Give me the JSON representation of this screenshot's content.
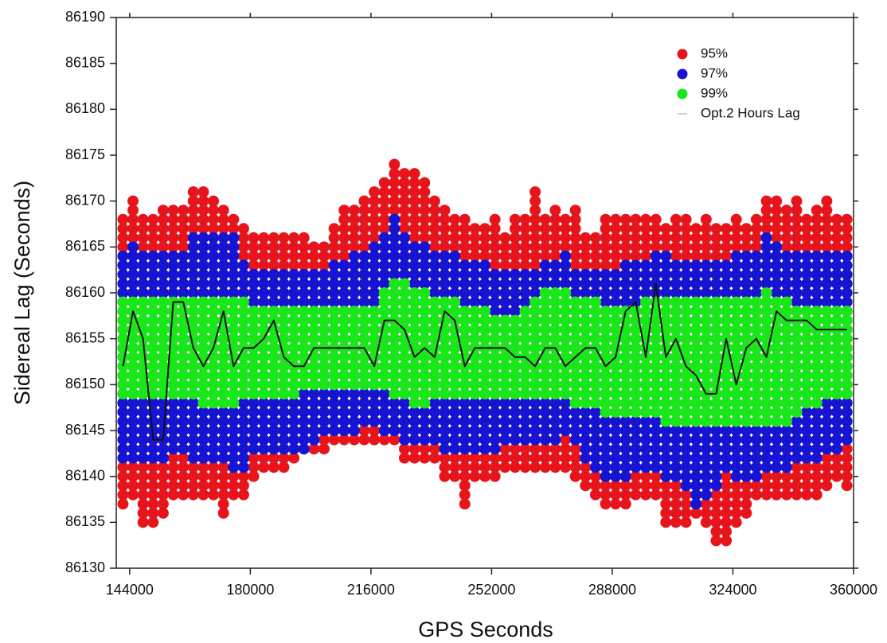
{
  "chart_data": {
    "type": "dot_range",
    "xlabel": "GPS Seconds",
    "ylabel": "Sidereal Lag (Seconds)",
    "xlim": [
      140000,
      360000
    ],
    "xticks": [
      144000,
      180000,
      216000,
      252000,
      288000,
      324000,
      360000
    ],
    "ylim": [
      86130,
      86190
    ],
    "yticks": [
      86130,
      86135,
      86140,
      86145,
      86150,
      86155,
      86160,
      86165,
      86170,
      86175,
      86180,
      86185,
      86190
    ],
    "legend": "upper right",
    "x": [
      142000,
      145000,
      148000,
      151000,
      154000,
      157000,
      160000,
      163000,
      166000,
      169000,
      172000,
      175000,
      178000,
      181000,
      184000,
      187000,
      190000,
      193000,
      196000,
      199000,
      202000,
      205000,
      208000,
      211000,
      214000,
      217000,
      220000,
      223000,
      226000,
      229000,
      232000,
      235000,
      238000,
      241000,
      244000,
      247000,
      250000,
      253000,
      256000,
      259000,
      262000,
      265000,
      268000,
      271000,
      274000,
      277000,
      280000,
      283000,
      286000,
      289000,
      292000,
      295000,
      298000,
      301000,
      304000,
      307000,
      310000,
      313000,
      316000,
      319000,
      322000,
      325000,
      328000,
      331000,
      334000,
      337000,
      340000,
      343000,
      346000,
      349000,
      352000,
      355000,
      358000
    ],
    "series": [
      {
        "name": "95%",
        "color": "#e8141c",
        "type": "dot_range",
        "low": [
          86137,
          86138,
          86135,
          86135,
          86136,
          86138,
          86138,
          86138,
          86138,
          86138,
          86136,
          86138,
          86138,
          86140,
          86141,
          86141,
          86141,
          86142,
          86143,
          86143,
          86143,
          86144,
          86144,
          86144,
          86144,
          86144,
          86144,
          86144,
          86142,
          86142,
          86142,
          86142,
          86140,
          86140,
          86137,
          86140,
          86140,
          86140,
          86141,
          86141,
          86141,
          86141,
          86141,
          86141,
          86141,
          86140,
          86139,
          86138,
          86137,
          86137,
          86137,
          86138,
          86138,
          86138,
          86135,
          86135,
          86135,
          86136,
          86135,
          86133,
          86133,
          86135,
          86136,
          86138,
          86138,
          86138,
          86138,
          86138,
          86138,
          86138,
          86139,
          86140,
          86139
        ],
        "high": [
          86168,
          86170,
          86168,
          86168,
          86169,
          86169,
          86169,
          86171,
          86171,
          86170,
          86169,
          86168,
          86167,
          86166,
          86166,
          86166,
          86166,
          86166,
          86166,
          86165,
          86165,
          86167,
          86169,
          86169,
          86170,
          86171,
          86172,
          86174,
          86173,
          86173,
          86172,
          86170,
          86169,
          86168,
          86168,
          86167,
          86167,
          86168,
          86166,
          86168,
          86168,
          86171,
          86168,
          86169,
          86168,
          86169,
          86166,
          86166,
          86168,
          86168,
          86168,
          86168,
          86168,
          86168,
          86167,
          86168,
          86168,
          86167,
          86168,
          86167,
          86167,
          86168,
          86167,
          86168,
          86170,
          86170,
          86169,
          86170,
          86168,
          86169,
          86170,
          86168,
          86168
        ]
      },
      {
        "name": "97%",
        "color": "#1414d2",
        "type": "dot_range",
        "low": [
          86142,
          86142,
          86142,
          86142,
          86142,
          86143,
          86143,
          86142,
          86142,
          86142,
          86142,
          86141,
          86141,
          86143,
          86143,
          86143,
          86143,
          86143,
          86143,
          86144,
          86145,
          86145,
          86145,
          86145,
          86146,
          86146,
          86145,
          86145,
          86144,
          86144,
          86144,
          86144,
          86143,
          86143,
          86143,
          86143,
          86143,
          86143,
          86144,
          86144,
          86144,
          86144,
          86144,
          86144,
          86145,
          86144,
          86142,
          86141,
          86140,
          86140,
          86140,
          86141,
          86141,
          86141,
          86140,
          86140,
          86139,
          86137,
          86138,
          86139,
          86141,
          86140,
          86140,
          86140,
          86141,
          86141,
          86141,
          86142,
          86142,
          86142,
          86143,
          86143,
          86144
        ],
        "high": [
          86164,
          86165,
          86164,
          86164,
          86164,
          86164,
          86164,
          86166,
          86166,
          86166,
          86166,
          86166,
          86163,
          86162,
          86162,
          86162,
          86162,
          86162,
          86162,
          86162,
          86162,
          86163,
          86163,
          86164,
          86164,
          86165,
          86166,
          86168,
          86166,
          86165,
          86165,
          86164,
          86164,
          86164,
          86163,
          86163,
          86163,
          86162,
          86162,
          86162,
          86162,
          86162,
          86163,
          86163,
          86164,
          86162,
          86162,
          86162,
          86162,
          86162,
          86163,
          86163,
          86163,
          86164,
          86164,
          86163,
          86163,
          86163,
          86163,
          86163,
          86163,
          86164,
          86164,
          86164,
          86166,
          86165,
          86164,
          86164,
          86164,
          86164,
          86164,
          86164,
          86164
        ]
      },
      {
        "name": "99%",
        "color": "#18e818",
        "type": "dot_range",
        "low": [
          86149,
          86149,
          86149,
          86149,
          86149,
          86149,
          86149,
          86149,
          86148,
          86148,
          86148,
          86148,
          86149,
          86149,
          86149,
          86149,
          86149,
          86149,
          86150,
          86150,
          86150,
          86150,
          86150,
          86150,
          86150,
          86150,
          86150,
          86149,
          86149,
          86148,
          86148,
          86149,
          86149,
          86149,
          86149,
          86149,
          86149,
          86149,
          86149,
          86149,
          86149,
          86149,
          86149,
          86149,
          86149,
          86148,
          86148,
          86148,
          86147,
          86147,
          86147,
          86147,
          86147,
          86147,
          86146,
          86146,
          86146,
          86146,
          86146,
          86146,
          86146,
          86146,
          86146,
          86146,
          86146,
          86146,
          86146,
          86147,
          86148,
          86148,
          86149,
          86149,
          86149
        ],
        "high": [
          86159,
          86159,
          86159,
          86159,
          86159,
          86159,
          86159,
          86159,
          86159,
          86159,
          86159,
          86159,
          86159,
          86158,
          86158,
          86158,
          86158,
          86158,
          86158,
          86158,
          86158,
          86158,
          86158,
          86158,
          86158,
          86158,
          86160,
          86161,
          86161,
          86160,
          86160,
          86159,
          86159,
          86159,
          86158,
          86158,
          86158,
          86157,
          86157,
          86157,
          86158,
          86159,
          86160,
          86160,
          86160,
          86159,
          86159,
          86159,
          86158,
          86158,
          86158,
          86158,
          86159,
          86159,
          86159,
          86159,
          86159,
          86159,
          86159,
          86159,
          86159,
          86159,
          86159,
          86159,
          86160,
          86159,
          86159,
          86158,
          86158,
          86158,
          86158,
          86158,
          86158
        ]
      },
      {
        "name": "Opt.2 Hours Lag",
        "color": "#111111",
        "type": "line",
        "values": [
          86152,
          86158,
          86155,
          86144,
          86144,
          86159,
          86159,
          86154,
          86152,
          86154,
          86158,
          86152,
          86154,
          86154,
          86155,
          86157,
          86153,
          86152,
          86152,
          86154,
          86154,
          86154,
          86154,
          86154,
          86154,
          86152,
          86157,
          86157,
          86156,
          86153,
          86154,
          86153,
          86158,
          86157,
          86152,
          86154,
          86154,
          86154,
          86154,
          86153,
          86153,
          86152,
          86154,
          86154,
          86152,
          86153,
          86154,
          86154,
          86152,
          86153,
          86158,
          86159,
          86153,
          86161,
          86153,
          86155,
          86152,
          86151,
          86149,
          86149,
          86155,
          86150,
          86154,
          86155,
          86153,
          86158,
          86157,
          86157,
          86157,
          86156,
          86156,
          86156,
          86156
        ]
      }
    ]
  }
}
